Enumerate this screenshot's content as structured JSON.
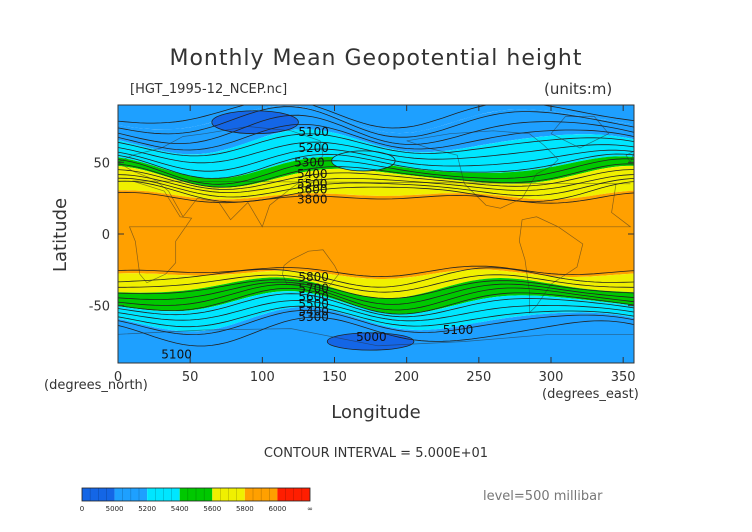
{
  "chart_data": {
    "type": "heatmap",
    "subtype": "filled-contour-map",
    "title": "Monthly Mean Geopotential height",
    "file_label": "[HGT_1995-12_NCEP.nc]",
    "units_label": "(units:m)",
    "xlabel": "Longitude",
    "ylabel": "Latitude",
    "x_unit_label": "(degrees_east)",
    "y_unit_label": "(degrees_north)",
    "xlim": [
      0,
      357.5
    ],
    "ylim": [
      -90,
      90
    ],
    "x_ticks": [
      0,
      50,
      100,
      150,
      200,
      250,
      300,
      350
    ],
    "y_ticks": [
      -50,
      0,
      50
    ],
    "contour_interval": "CONTOUR INTERVAL = 5.000E+01",
    "level": "level=500 millibar",
    "color_levels": [
      {
        "min": 0,
        "max": 5000,
        "color": "#1466e6"
      },
      {
        "min": 5000,
        "max": 5200,
        "color": "#1ea0ff"
      },
      {
        "min": 5200,
        "max": 5400,
        "color": "#00e6ff"
      },
      {
        "min": 5400,
        "max": 5600,
        "color": "#00c800"
      },
      {
        "min": 5600,
        "max": 5800,
        "color": "#f0f000"
      },
      {
        "min": 5800,
        "max": 6000,
        "color": "#ffa000"
      },
      {
        "min": 6000,
        "max": 99999,
        "color": "#ff1e00"
      }
    ],
    "colorbar_labels": [
      "0",
      "5000",
      "5200",
      "5400",
      "5600",
      "5800",
      "6000",
      "∞"
    ],
    "zonal_bands": [
      {
        "lat_from": 90,
        "lat_to": 80,
        "level": 5000
      },
      {
        "lat_from": 80,
        "lat_to": 64,
        "level": 5100
      },
      {
        "lat_from": 64,
        "lat_to": 47,
        "level": 5300
      },
      {
        "lat_from": 47,
        "lat_to": 40,
        "level": 5500
      },
      {
        "lat_from": 40,
        "lat_to": 27,
        "level": 5700
      },
      {
        "lat_from": 27,
        "lat_to": -28,
        "level": 5850
      },
      {
        "lat_from": -28,
        "lat_to": -37,
        "level": 5700
      },
      {
        "lat_from": -37,
        "lat_to": -48,
        "level": 5500
      },
      {
        "lat_from": -48,
        "lat_to": -60,
        "level": 5300
      },
      {
        "lat_from": -60,
        "lat_to": -90,
        "level": 5100
      }
    ],
    "lows": [
      {
        "lon": 95,
        "lat": 78,
        "rx": 30,
        "ry": 8,
        "level": 4950
      },
      {
        "lon": 175,
        "lat": -75,
        "rx": 30,
        "ry": 6,
        "level": 4950
      },
      {
        "lon": 170,
        "lat": 51,
        "rx": 22,
        "ry": 7,
        "level": 5250
      }
    ],
    "contour_labels": [
      {
        "text": "5100",
        "lon": 125,
        "lat": 71
      },
      {
        "text": "5200",
        "lon": 125,
        "lat": 60
      },
      {
        "text": "5300",
        "lon": 122,
        "lat": 50
      },
      {
        "text": "5400",
        "lon": 124,
        "lat": 42
      },
      {
        "text": "5500",
        "lon": 124,
        "lat": 35
      },
      {
        "text": "5600",
        "lon": 124,
        "lat": 31
      },
      {
        "text": "3800",
        "lon": 124,
        "lat": 24
      },
      {
        "text": "5800",
        "lon": 125,
        "lat": -30
      },
      {
        "text": "5700",
        "lon": 125,
        "lat": -38
      },
      {
        "text": "5600",
        "lon": 125,
        "lat": -44
      },
      {
        "text": "5500",
        "lon": 125,
        "lat": -49
      },
      {
        "text": "5400",
        "lon": 125,
        "lat": -54
      },
      {
        "text": "5300",
        "lon": 125,
        "lat": -58
      },
      {
        "text": "5000",
        "lon": 165,
        "lat": -72
      },
      {
        "text": "5100",
        "lon": 225,
        "lat": -67
      },
      {
        "text": "5100",
        "lon": 30,
        "lat": -84
      }
    ]
  }
}
